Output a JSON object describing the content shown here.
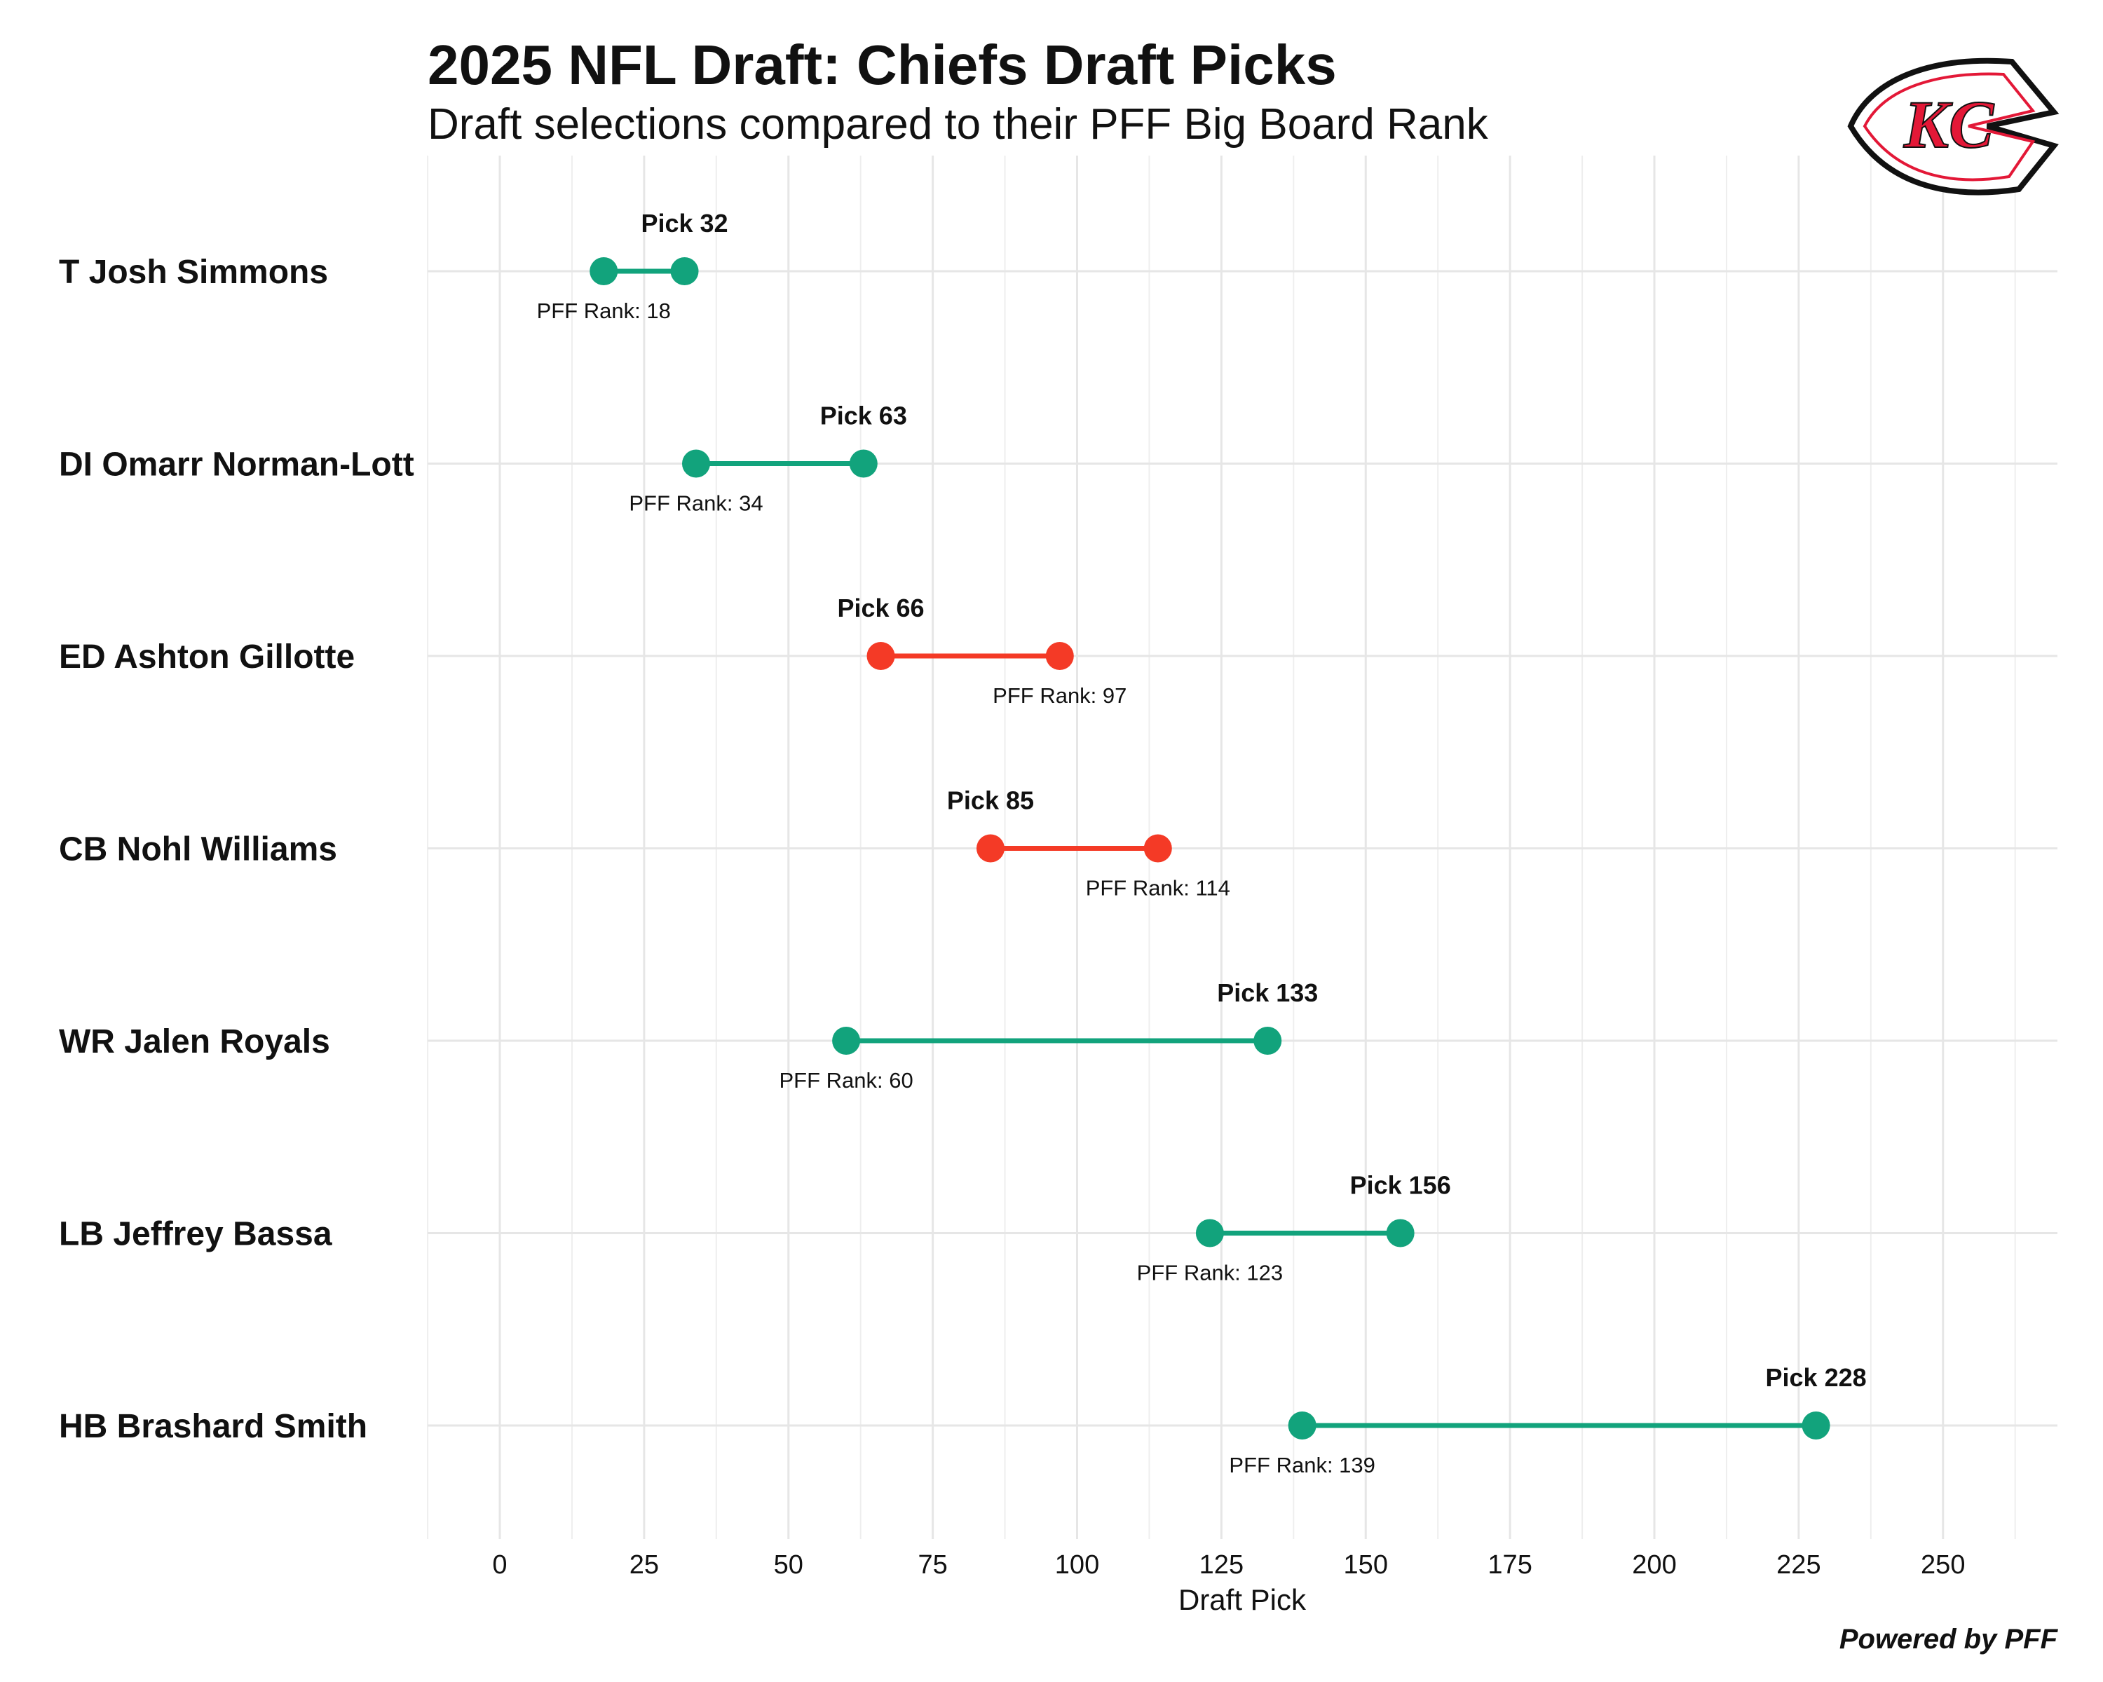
{
  "chart_data": {
    "type": "dumbbell",
    "title": "2025 NFL Draft: Chiefs Draft Picks",
    "subtitle": "Draft selections compared to their PFF Big Board Rank",
    "xlabel": "Draft Pick",
    "xlim": [
      -12.5,
      270
    ],
    "xticks": [
      0,
      25,
      50,
      75,
      100,
      125,
      150,
      175,
      200,
      225,
      250
    ],
    "grid": true,
    "pick_prefix": "Pick ",
    "rank_prefix": "PFF Rank: ",
    "colors": {
      "value": "#12a37c",
      "reach": "#f43a26"
    },
    "players": [
      {
        "label": "T Josh Simmons",
        "pick": 32,
        "pff_rank": 18
      },
      {
        "label": "DI Omarr Norman-Lott",
        "pick": 63,
        "pff_rank": 34
      },
      {
        "label": "ED Ashton Gillotte",
        "pick": 66,
        "pff_rank": 97
      },
      {
        "label": "CB Nohl Williams",
        "pick": 85,
        "pff_rank": 114
      },
      {
        "label": "WR Jalen Royals",
        "pick": 133,
        "pff_rank": 60
      },
      {
        "label": "LB Jeffrey Bassa",
        "pick": 156,
        "pff_rank": 123
      },
      {
        "label": "HB Brashard Smith",
        "pick": 228,
        "pff_rank": 139
      }
    ]
  },
  "caption": "Powered by PFF",
  "logo": {
    "name": "chiefs-arrowhead-logo",
    "text": "KC",
    "color": "#e31837"
  }
}
